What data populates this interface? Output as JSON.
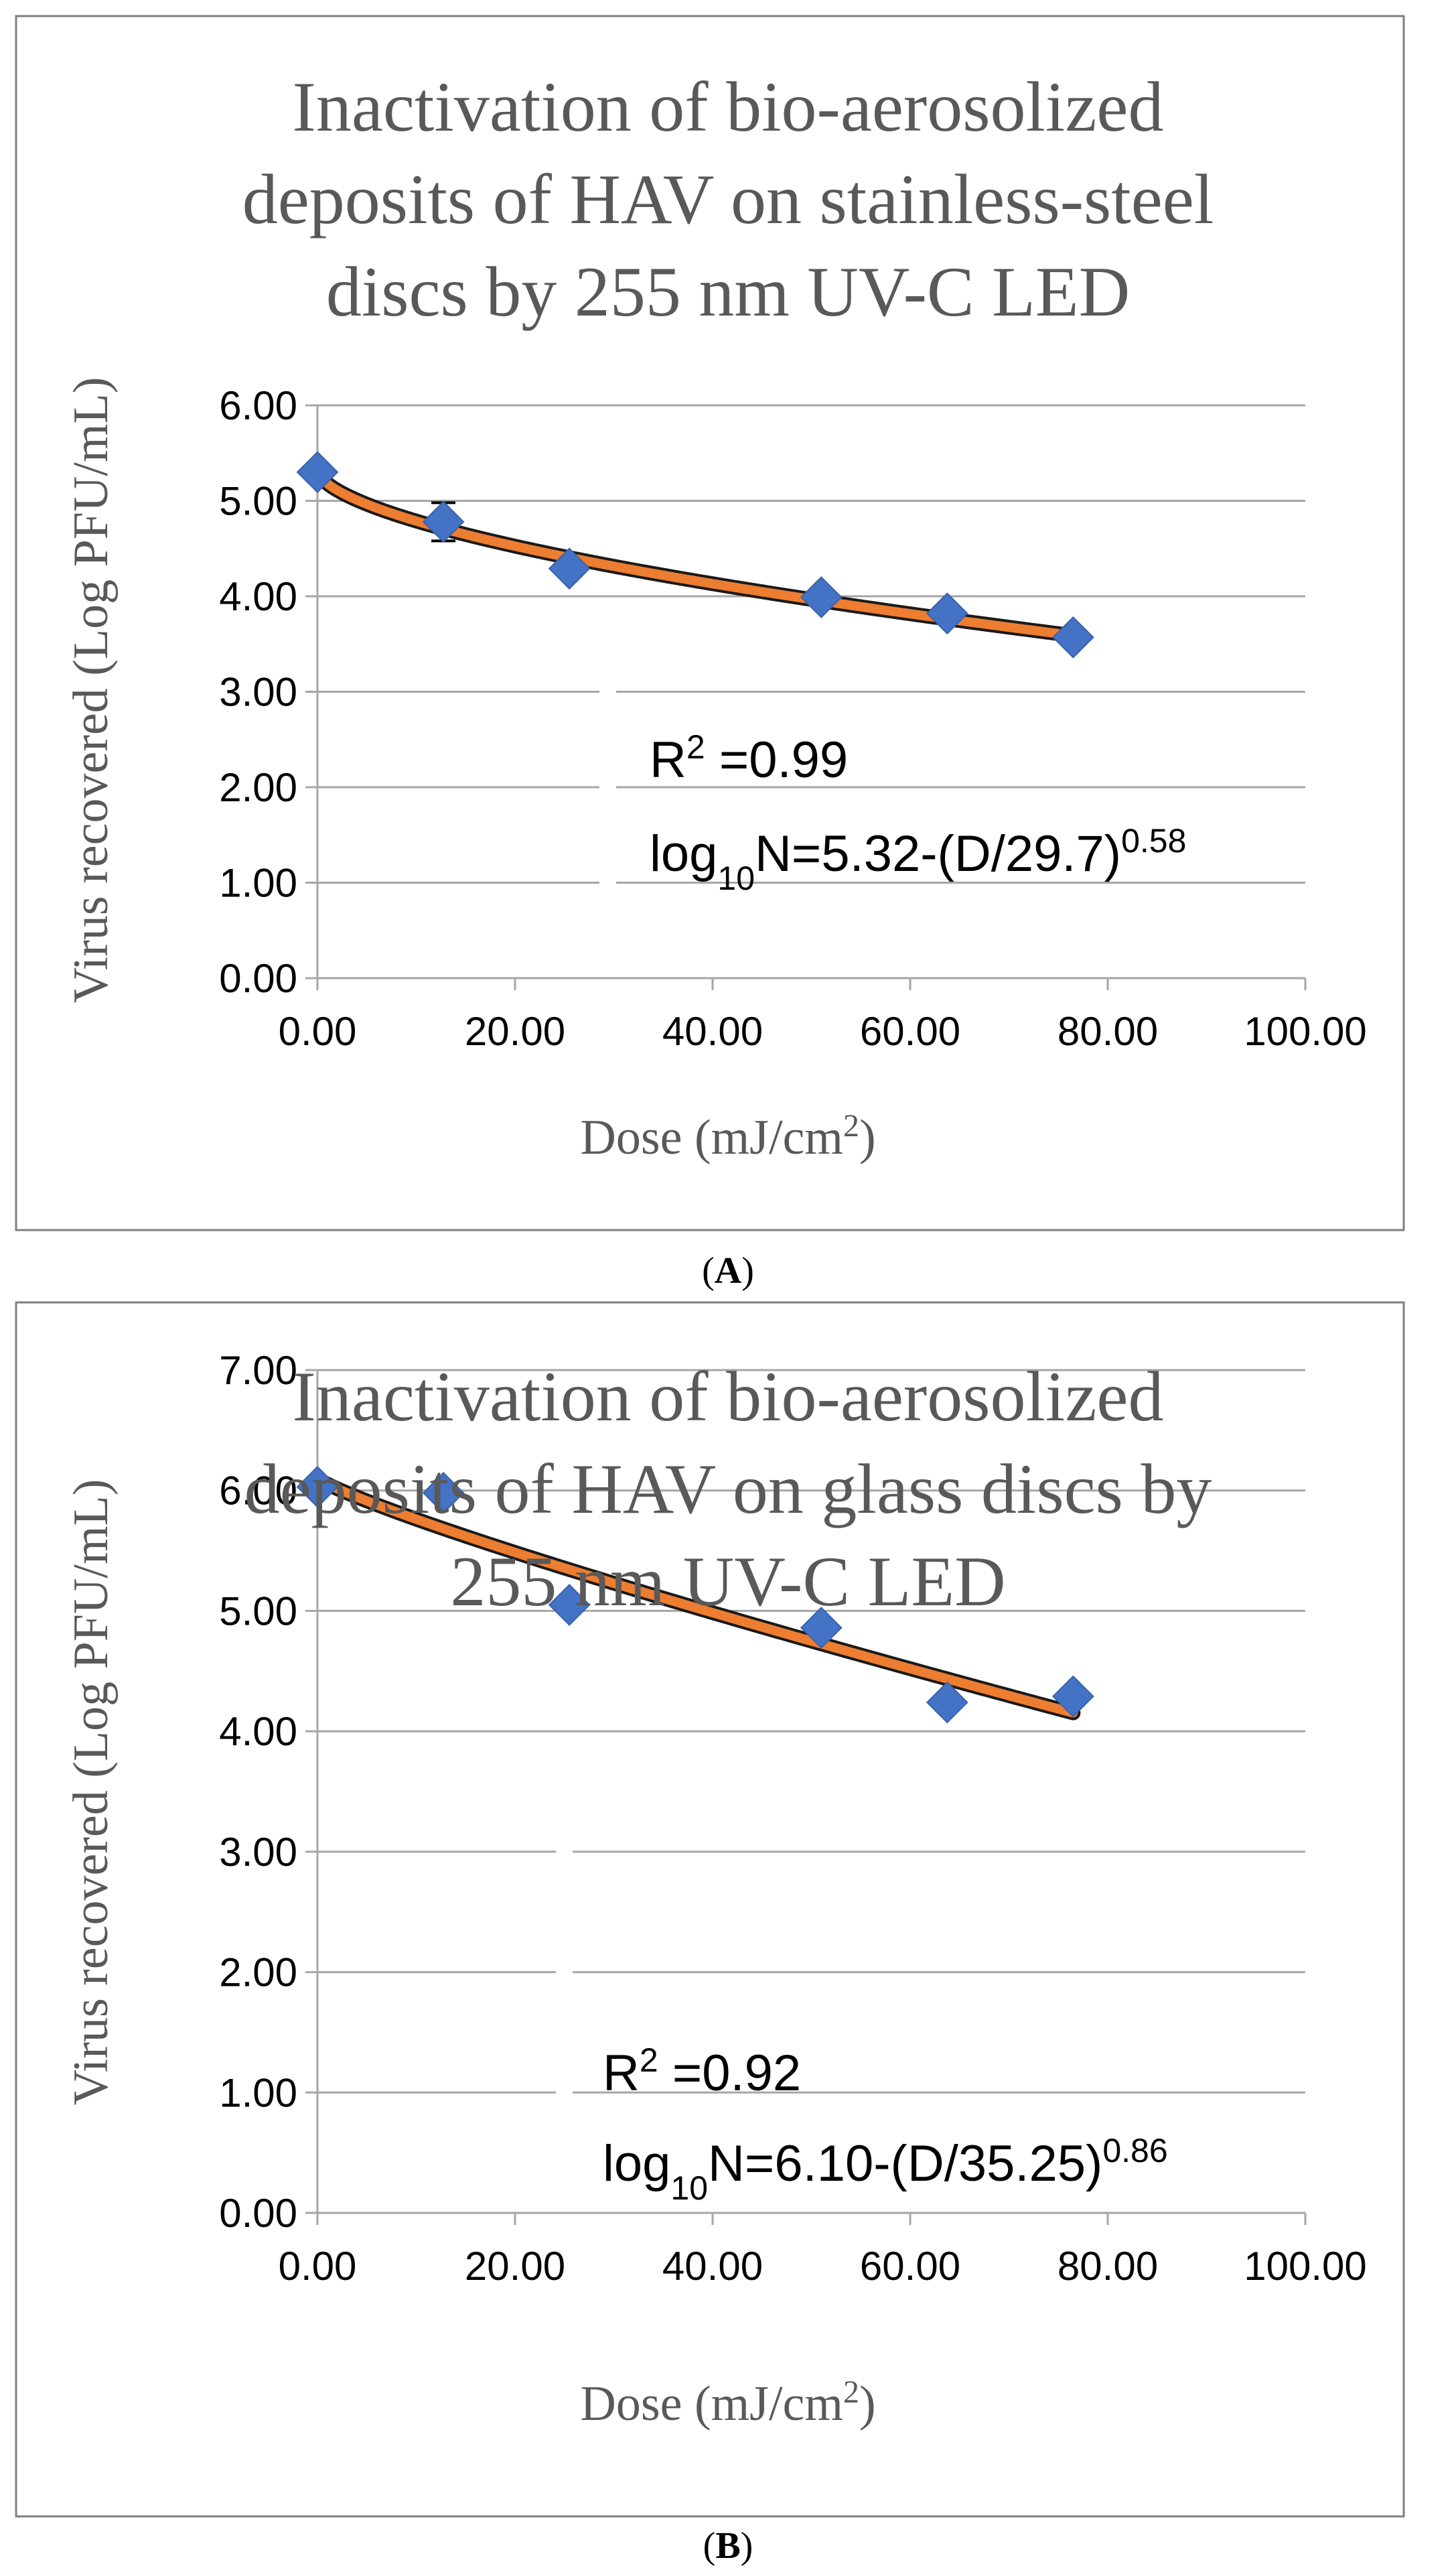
{
  "chart_data": [
    {
      "type": "scatter",
      "panel_label": "A",
      "title_lines": [
        "Inactivation of bio-aerosolized",
        "deposits of HAV on stainless-steel",
        "discs by 255 nm UV-C LED"
      ],
      "xlabel_main": "Dose (mJ/cm",
      "xlabel_sup": "2",
      "xlabel_end": ")",
      "ylabel": "Virus recovered (Log PFU/mL)",
      "xlim": [
        0,
        100
      ],
      "ylim": [
        0,
        6
      ],
      "xticks": [
        0,
        20,
        40,
        60,
        80,
        100
      ],
      "xtick_labels": [
        "0.00",
        "20.00",
        "40.00",
        "60.00",
        "80.00",
        "100.00"
      ],
      "yticks": [
        0,
        1,
        2,
        3,
        4,
        5,
        6
      ],
      "ytick_labels": [
        "0.00",
        "1.00",
        "2.00",
        "3.00",
        "4.00",
        "5.00",
        "6.00"
      ],
      "points": [
        {
          "x": 0,
          "y": 5.3
        },
        {
          "x": 12.75,
          "y": 4.78,
          "err": 0.2
        },
        {
          "x": 25.5,
          "y": 4.29
        },
        {
          "x": 51,
          "y": 3.99
        },
        {
          "x": 63.75,
          "y": 3.82
        },
        {
          "x": 76.5,
          "y": 3.57
        }
      ],
      "fit": {
        "a": 5.32,
        "d": 29.7,
        "p": 0.58,
        "x_max": 76.5
      },
      "annotation": {
        "r2_text": "R",
        "r2_sup": "2",
        "r2_rest": " =0.99",
        "eq_log": "log",
        "eq_sub": "10",
        "eq_mid": "N=5.32-(D/29.7)",
        "eq_sup": "0.58"
      },
      "colors": {
        "marker": "#4472C4",
        "fit": "#ED7D31",
        "grid": "#A6A6A6"
      }
    },
    {
      "type": "scatter",
      "panel_label": "B",
      "title_lines": [
        "Inactivation of bio-aerosolized",
        "deposits of HAV on glass discs by",
        "255 nm UV-C LED"
      ],
      "xlabel_main": "Dose (mJ/cm",
      "xlabel_sup": "2",
      "xlabel_end": ")",
      "ylabel": "Virus recovered (Log PFU/mL)",
      "xlim": [
        0,
        100
      ],
      "ylim": [
        0,
        7
      ],
      "xticks": [
        0,
        20,
        40,
        60,
        80,
        100
      ],
      "xtick_labels": [
        "0.00",
        "20.00",
        "40.00",
        "60.00",
        "80.00",
        "100.00"
      ],
      "yticks": [
        0,
        1,
        2,
        3,
        4,
        5,
        6,
        7
      ],
      "ytick_labels": [
        "0.00",
        "1.00",
        "2.00",
        "3.00",
        "4.00",
        "5.00",
        "6.00",
        "7.00"
      ],
      "points": [
        {
          "x": 0,
          "y": 6.03
        },
        {
          "x": 12.75,
          "y": 5.98
        },
        {
          "x": 25.5,
          "y": 5.05
        },
        {
          "x": 51,
          "y": 4.86
        },
        {
          "x": 63.75,
          "y": 4.24
        },
        {
          "x": 76.5,
          "y": 4.29
        }
      ],
      "fit": {
        "a": 6.1,
        "d": 35.25,
        "p": 0.86,
        "x_max": 76.5
      },
      "annotation": {
        "r2_text": "R",
        "r2_sup": "2",
        "r2_rest": " =0.92",
        "eq_log": "log",
        "eq_sub": "10",
        "eq_mid": "N=6.10-(D/35.25)",
        "eq_sup": "0.86"
      },
      "colors": {
        "marker": "#4472C4",
        "fit": "#ED7D31",
        "grid": "#A6A6A6"
      }
    }
  ]
}
